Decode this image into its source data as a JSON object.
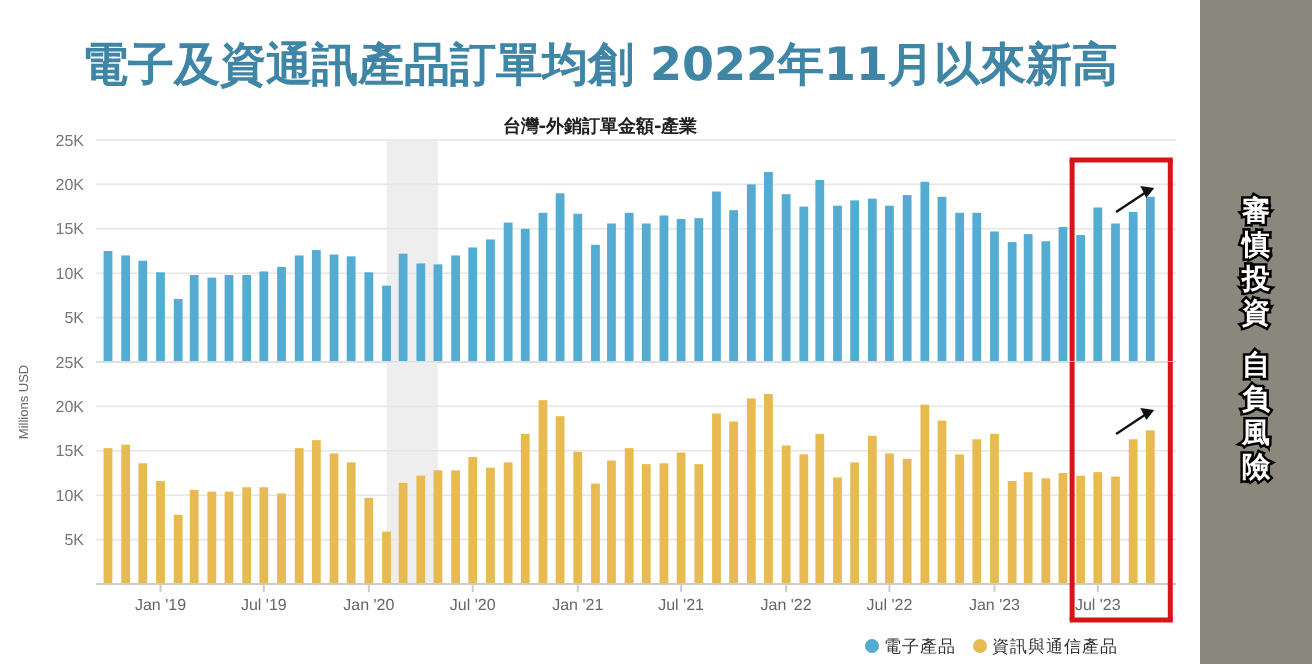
{
  "chart_data": [
    {
      "type": "bar",
      "title": "電子及資通訊產品訂單均創 2022年11月以來新高",
      "subtitle": "台灣-外銷訂單金額-產業",
      "x": [
        "2018-10",
        "2018-11",
        "2018-12",
        "2019-01",
        "2019-02",
        "2019-03",
        "2019-04",
        "2019-05",
        "2019-06",
        "2019-07",
        "2019-08",
        "2019-09",
        "2019-10",
        "2019-11",
        "2019-12",
        "2020-01",
        "2020-02",
        "2020-03",
        "2020-04",
        "2020-05",
        "2020-06",
        "2020-07",
        "2020-08",
        "2020-09",
        "2020-10",
        "2020-11",
        "2020-12",
        "2021-01",
        "2021-02",
        "2021-03",
        "2021-04",
        "2021-05",
        "2021-06",
        "2021-07",
        "2021-08",
        "2021-09",
        "2021-10",
        "2021-11",
        "2021-12",
        "2022-01",
        "2022-02",
        "2022-03",
        "2022-04",
        "2022-05",
        "2022-06",
        "2022-07",
        "2022-08",
        "2022-09",
        "2022-10",
        "2022-11",
        "2022-12",
        "2023-01",
        "2023-02",
        "2023-03",
        "2023-04",
        "2023-05",
        "2023-06",
        "2023-07",
        "2023-08",
        "2023-09",
        "2023-10"
      ],
      "series": [
        {
          "name": "電子產品",
          "color": "#55acd3",
          "values": [
            12500,
            12000,
            11400,
            10100,
            7100,
            9800,
            9500,
            9800,
            9800,
            10200,
            10700,
            12000,
            12600,
            12100,
            11900,
            10100,
            8600,
            12200,
            11100,
            11000,
            12000,
            12900,
            13800,
            15700,
            15000,
            16800,
            19000,
            16700,
            13200,
            15600,
            16800,
            15600,
            16500,
            16100,
            16200,
            19200,
            17100,
            20000,
            21400,
            18900,
            17500,
            20500,
            17600,
            18200,
            18400,
            17600,
            18800,
            20300,
            18600,
            16800,
            16800,
            14700,
            13500,
            14400,
            13600,
            15200,
            14300,
            17400,
            15600,
            16900,
            18600
          ]
        }
      ],
      "xlim": [
        "2018-09-10",
        "2023-11-15"
      ],
      "ylim": [
        0,
        25000
      ],
      "yticks": [
        {
          "value": 5000,
          "label": "5K"
        },
        {
          "value": 10000,
          "label": "10K"
        },
        {
          "value": 15000,
          "label": "15K"
        },
        {
          "value": 20000,
          "label": "20K"
        },
        {
          "value": 25000,
          "label": "25K"
        }
      ],
      "tick_labels": "y",
      "grid": "y",
      "legend": "bottom",
      "ref_lines": [
        {
          "axis": "x",
          "value": "2023-05-17",
          "color": "#d7141a"
        },
        {
          "axis": "x",
          "value": "2023-11-05",
          "color": "#d7141a"
        }
      ],
      "bands": [
        {
          "axis": "x",
          "from": "2020-02",
          "to": "2020-05",
          "color": "#eeeeee"
        }
      ]
    },
    {
      "type": "bar",
      "ylabel": "Millions USD",
      "x": [
        "2018-10",
        "2018-11",
        "2018-12",
        "2019-01",
        "2019-02",
        "2019-03",
        "2019-04",
        "2019-05",
        "2019-06",
        "2019-07",
        "2019-08",
        "2019-09",
        "2019-10",
        "2019-11",
        "2019-12",
        "2020-01",
        "2020-02",
        "2020-03",
        "2020-04",
        "2020-05",
        "2020-06",
        "2020-07",
        "2020-08",
        "2020-09",
        "2020-10",
        "2020-11",
        "2020-12",
        "2021-01",
        "2021-02",
        "2021-03",
        "2021-04",
        "2021-05",
        "2021-06",
        "2021-07",
        "2021-08",
        "2021-09",
        "2021-10",
        "2021-11",
        "2021-12",
        "2022-01",
        "2022-02",
        "2022-03",
        "2022-04",
        "2022-05",
        "2022-06",
        "2022-07",
        "2022-08",
        "2022-09",
        "2022-10",
        "2022-11",
        "2022-12",
        "2023-01",
        "2023-02",
        "2023-03",
        "2023-04",
        "2023-05",
        "2023-06",
        "2023-07",
        "2023-08",
        "2023-09",
        "2023-10"
      ],
      "series": [
        {
          "name": "資訊與通信產品",
          "color": "#e8bb52",
          "values": [
            15300,
            15700,
            13600,
            11600,
            7800,
            10600,
            10400,
            10400,
            10900,
            10900,
            10200,
            15300,
            16200,
            14700,
            13700,
            9700,
            5900,
            11400,
            12200,
            12800,
            12800,
            14300,
            13100,
            13700,
            16900,
            20700,
            18900,
            14900,
            11300,
            13900,
            15300,
            13500,
            13600,
            14800,
            13500,
            19200,
            18300,
            20900,
            21400,
            15600,
            14600,
            16900,
            12000,
            13700,
            16700,
            14700,
            14100,
            20200,
            18400,
            14600,
            16300,
            16900,
            11600,
            12600,
            11900,
            12500,
            12200,
            12600,
            12100,
            16300,
            17300
          ]
        }
      ],
      "xlim": [
        "2018-09-10",
        "2023-11-15"
      ],
      "ylim": [
        0,
        25000
      ],
      "xticks": [
        {
          "value": "2019-01",
          "label": "Jan '19"
        },
        {
          "value": "2019-07",
          "label": "Jul '19"
        },
        {
          "value": "2020-01",
          "label": "Jan '20"
        },
        {
          "value": "2020-07",
          "label": "Jul '20"
        },
        {
          "value": "2021-01",
          "label": "Jan '21"
        },
        {
          "value": "2021-07",
          "label": "Jul '21"
        },
        {
          "value": "2022-01",
          "label": "Jan '22"
        },
        {
          "value": "2022-07",
          "label": "Jul '22"
        },
        {
          "value": "2023-01",
          "label": "Jan '23"
        },
        {
          "value": "2023-07",
          "label": "Jul '23"
        }
      ],
      "yticks": [
        {
          "value": 5000,
          "label": "5K"
        },
        {
          "value": 10000,
          "label": "10K"
        },
        {
          "value": 15000,
          "label": "15K"
        },
        {
          "value": 20000,
          "label": "20K"
        },
        {
          "value": 25000,
          "label": "25K"
        }
      ],
      "grid": "y",
      "legend": "bottom",
      "ref_lines": [
        {
          "axis": "x",
          "value": "2023-05-17",
          "color": "#d7141a"
        },
        {
          "axis": "x",
          "value": "2023-11-05",
          "color": "#d7141a"
        }
      ],
      "bands": [
        {
          "axis": "x",
          "from": "2020-02",
          "to": "2020-05",
          "color": "#eeeeee"
        }
      ],
      "annotations": [
        "審慎投資",
        "自負風險"
      ]
    }
  ]
}
